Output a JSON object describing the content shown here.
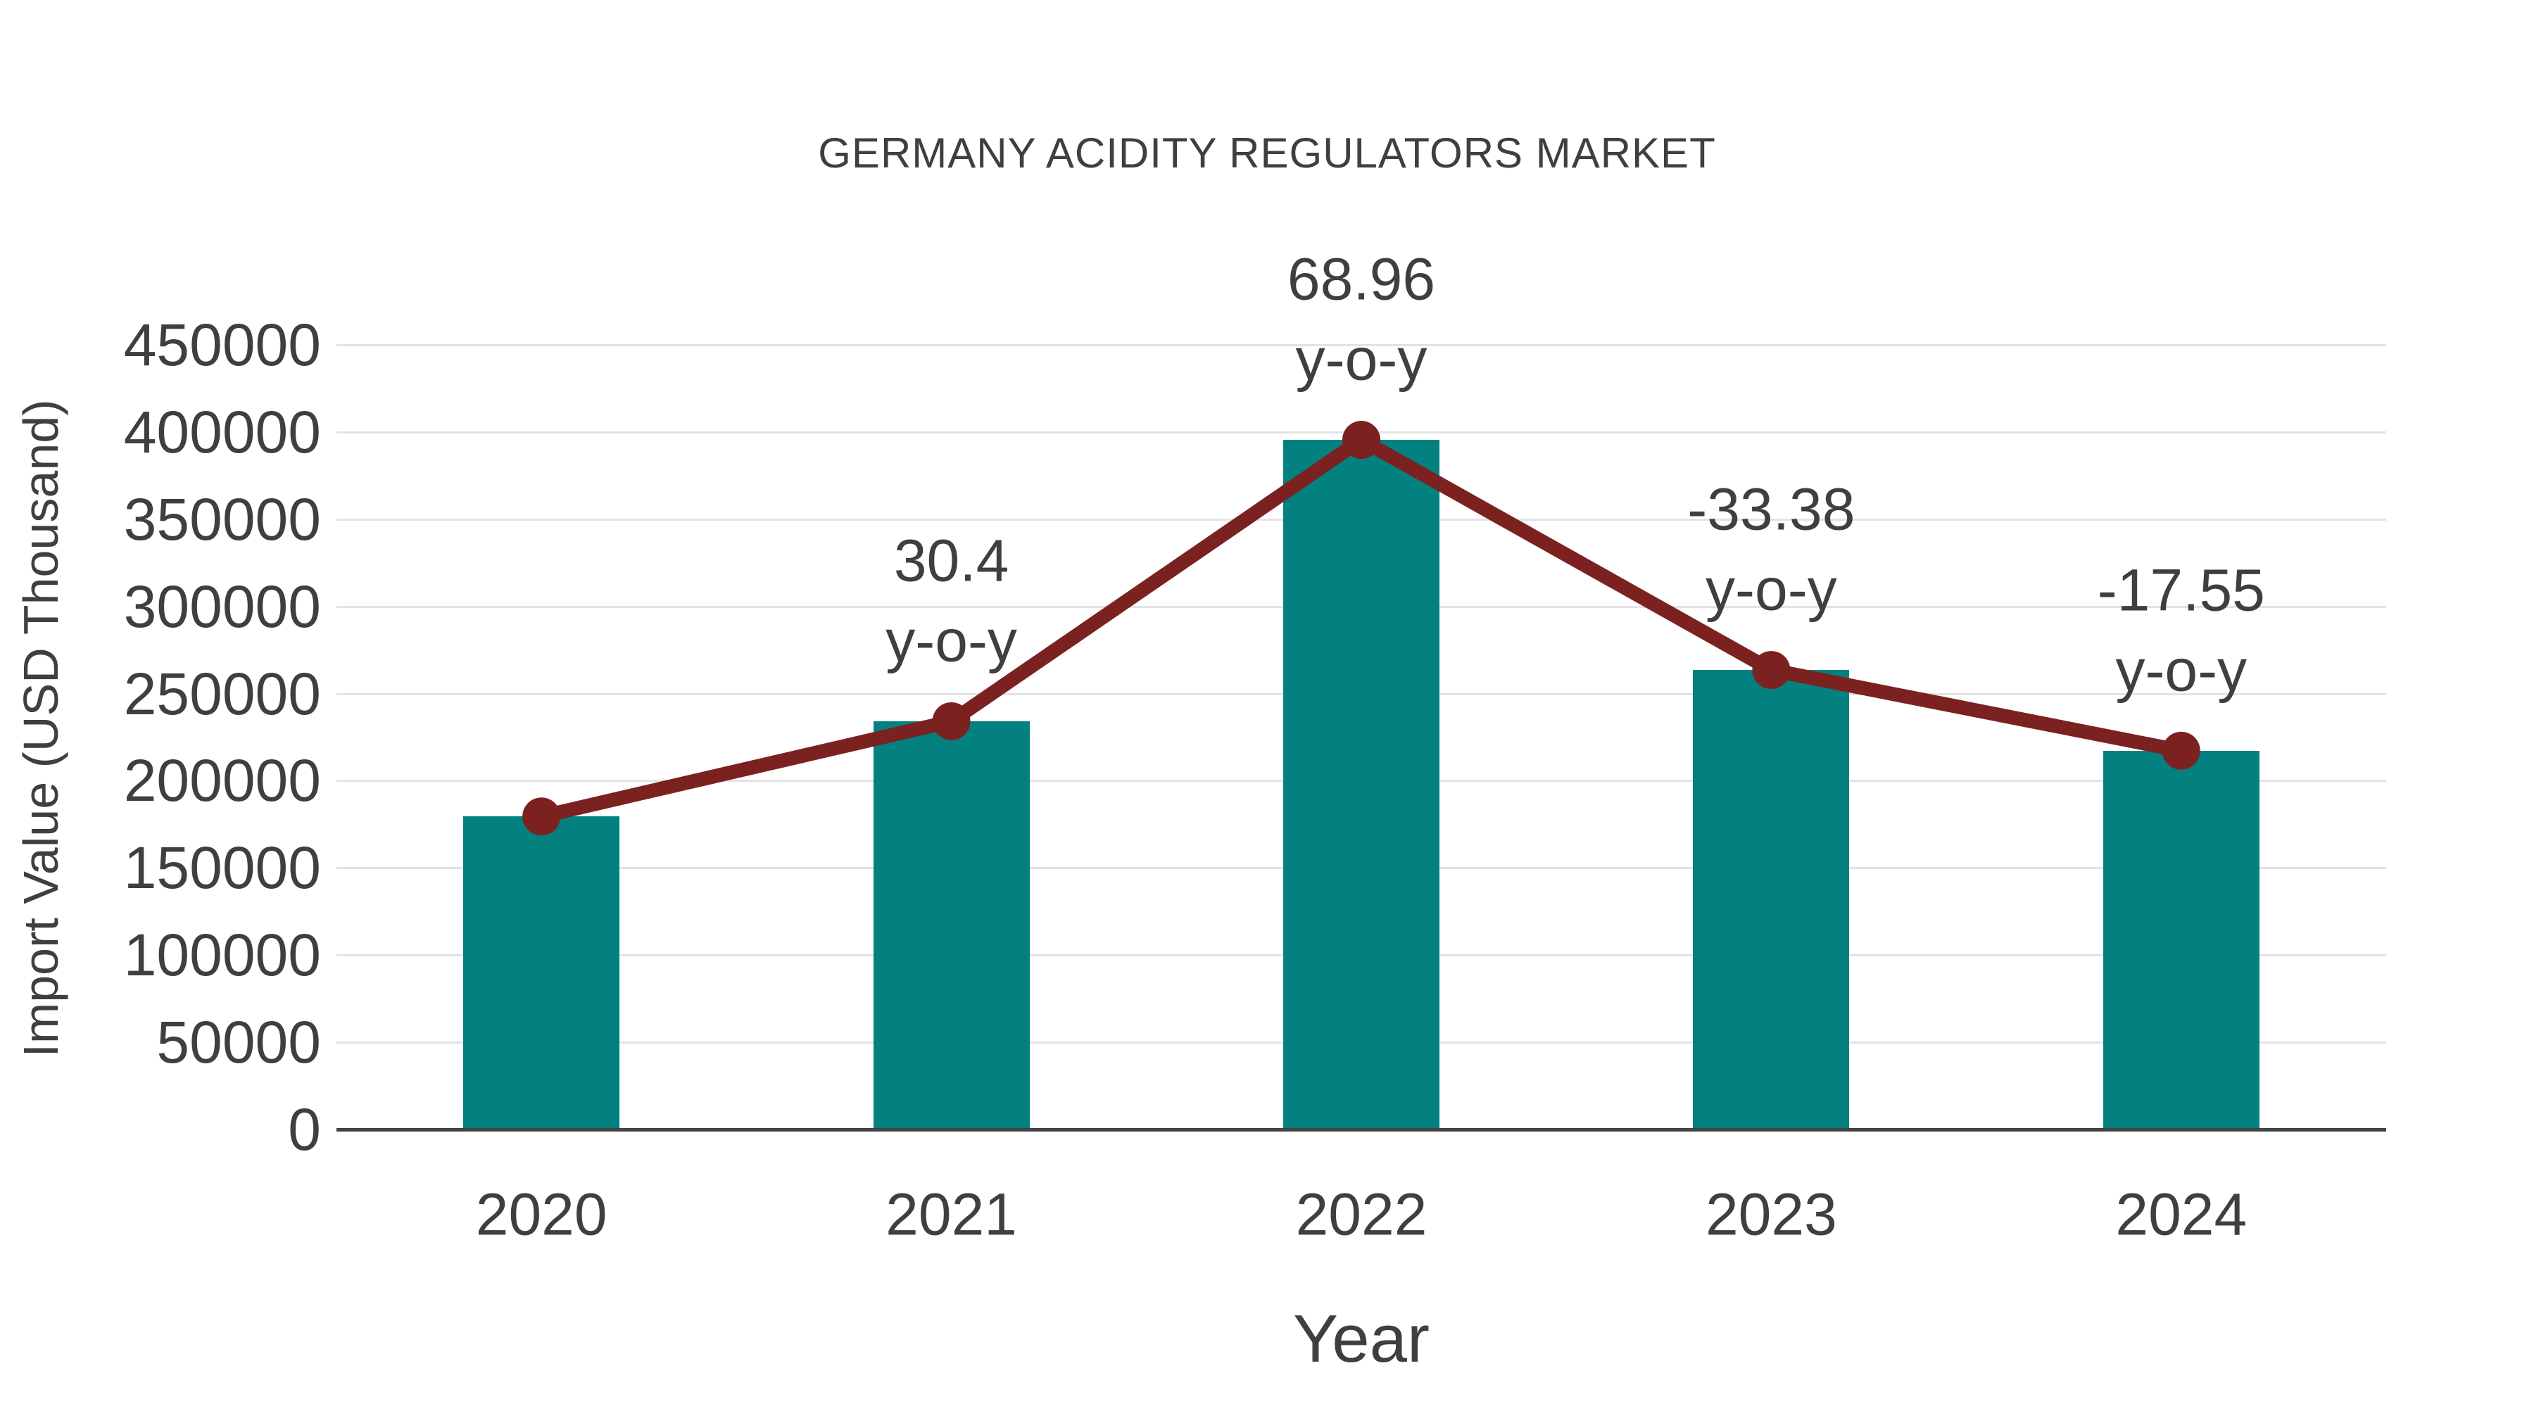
{
  "title": "GERMANY ACIDITY REGULATORS MARKET",
  "colors": {
    "bar": "#028180",
    "line": "#7b2220",
    "text": "#3f3f3f",
    "grid": "#e3e3e3",
    "axis": "#434343",
    "background": "#ffffff"
  },
  "chart_data": {
    "type": "bar",
    "title": "GERMANY ACIDITY REGULATORS MARKET",
    "xlabel": "Year",
    "ylabel": "Import Value (USD Thousand)",
    "categories": [
      "2020",
      "2021",
      "2022",
      "2023",
      "2024"
    ],
    "series": [
      {
        "name": "Import Value bars",
        "type": "bar",
        "values": [
          179500,
          234100,
          395500,
          263500,
          217200
        ]
      },
      {
        "name": "Import Value trend line",
        "type": "line",
        "values": [
          179500,
          234100,
          395500,
          263500,
          217200
        ]
      }
    ],
    "annotations": [
      {
        "category": "2021",
        "value": "30.4",
        "label": "y-o-y"
      },
      {
        "category": "2022",
        "value": "68.96",
        "label": "y-o-y"
      },
      {
        "category": "2023",
        "value": "-33.38",
        "label": "y-o-y"
      },
      {
        "category": "2024",
        "value": "-17.55",
        "label": "y-o-y"
      }
    ],
    "ylim": [
      0,
      450000
    ],
    "yticks": [
      "0",
      "50000",
      "100000",
      "150000",
      "200000",
      "250000",
      "300000",
      "350000",
      "400000",
      "450000"
    ],
    "grid": "horizontal",
    "legend": "none"
  }
}
